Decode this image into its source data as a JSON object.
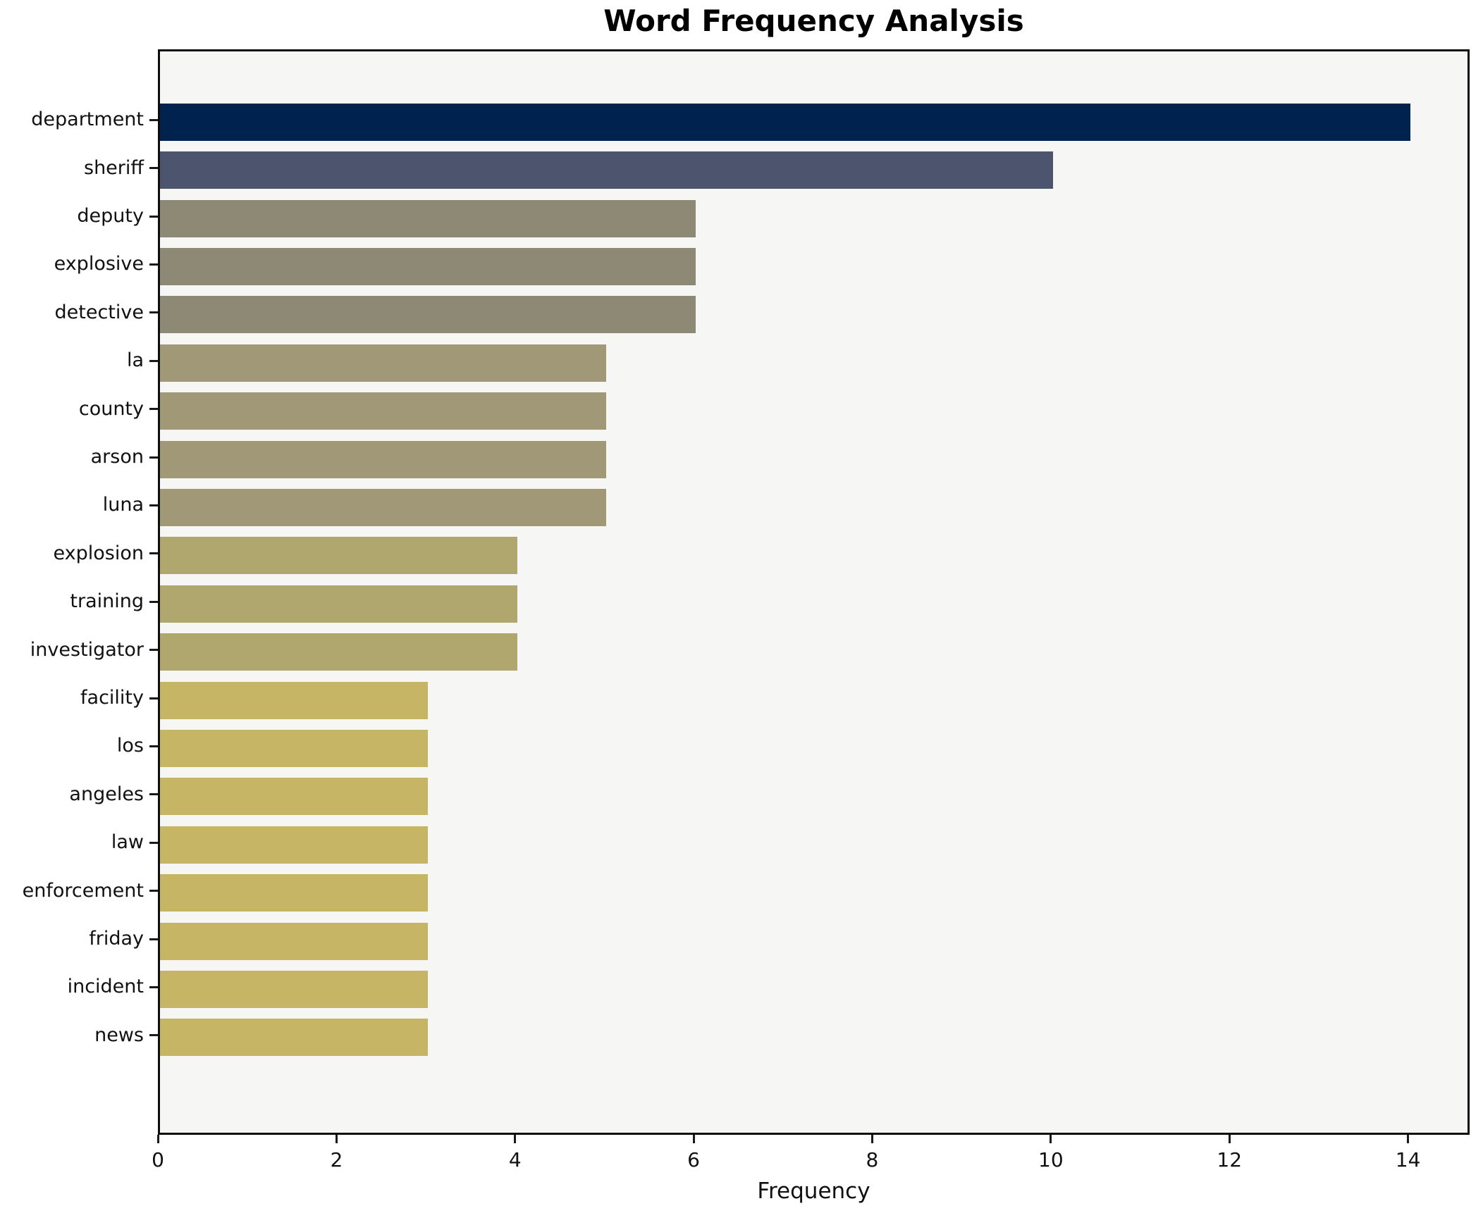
{
  "title": "Word Frequency Analysis",
  "chart_data": {
    "type": "bar",
    "orientation": "horizontal",
    "title": "Word Frequency Analysis",
    "xlabel": "Frequency",
    "ylabel": "",
    "categories": [
      "department",
      "sheriff",
      "deputy",
      "explosive",
      "detective",
      "la",
      "county",
      "arson",
      "luna",
      "explosion",
      "training",
      "investigator",
      "facility",
      "los",
      "angeles",
      "law",
      "enforcement",
      "friday",
      "incident",
      "news"
    ],
    "values": [
      14,
      10,
      6,
      6,
      6,
      5,
      5,
      5,
      5,
      4,
      4,
      4,
      3,
      3,
      3,
      3,
      3,
      3,
      3,
      3
    ],
    "bar_colors": [
      "#00224e",
      "#4c556d",
      "#8e8975",
      "#8e8975",
      "#8e8975",
      "#a09877",
      "#a09877",
      "#a09877",
      "#a09877",
      "#b0a76e",
      "#b0a76e",
      "#b0a76e",
      "#c5b565",
      "#c5b565",
      "#c5b565",
      "#c5b565",
      "#c5b565",
      "#c5b565",
      "#c5b565",
      "#c5b565"
    ],
    "xticks": [
      0,
      2,
      4,
      6,
      8,
      10,
      12,
      14
    ],
    "xlim": [
      0,
      14.69
    ],
    "grid": false,
    "legend": false,
    "plot_background": "#f6f6f4",
    "spine_color": "#0e0e0e",
    "text_color": "#111111"
  }
}
